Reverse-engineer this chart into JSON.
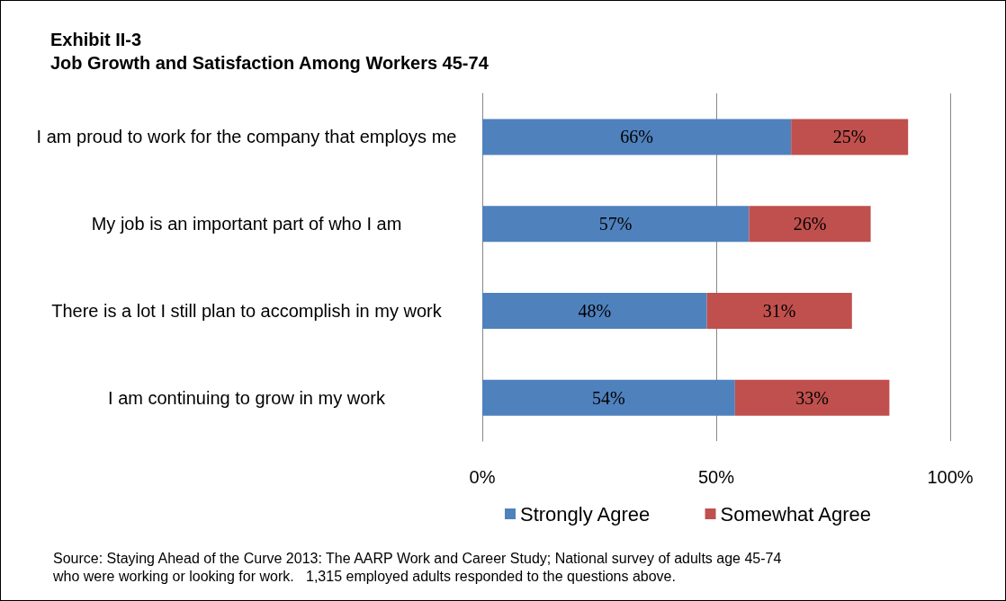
{
  "chart_data": {
    "type": "bar",
    "orientation": "horizontal",
    "stacked": true,
    "title": "Exhibit II-3",
    "subtitle": "Job Growth and Satisfaction Among Workers 45-74",
    "categories": [
      "I am proud to work for the company that employs me",
      "My job is an important part of who I am",
      "There is a lot I still plan to accomplish in my work",
      "I am continuing to grow in my work"
    ],
    "series": [
      {
        "name": "Strongly Agree",
        "color": "#4f81bd",
        "values": [
          66,
          57,
          48,
          54
        ],
        "value_labels": [
          "66%",
          "57%",
          "48%",
          "54%"
        ]
      },
      {
        "name": "Somewhat Agree",
        "color": "#c0504d",
        "values": [
          25,
          26,
          31,
          33
        ],
        "value_labels": [
          "25%",
          "26%",
          "31%",
          "33%"
        ]
      }
    ],
    "xlim": [
      0,
      100
    ],
    "xticks": [
      {
        "value": 0,
        "label": "0%"
      },
      {
        "value": 50,
        "label": "50%"
      },
      {
        "value": 100,
        "label": "100%"
      }
    ],
    "grid": "x",
    "legend": "bottom",
    "annotations": [
      "Source: Staying Ahead of the Curve 2013: The AARP Work and Career Study; National survey of adults age 45-74 who were working or looking for work.   1,315 employed adults responded to the questions above."
    ]
  }
}
